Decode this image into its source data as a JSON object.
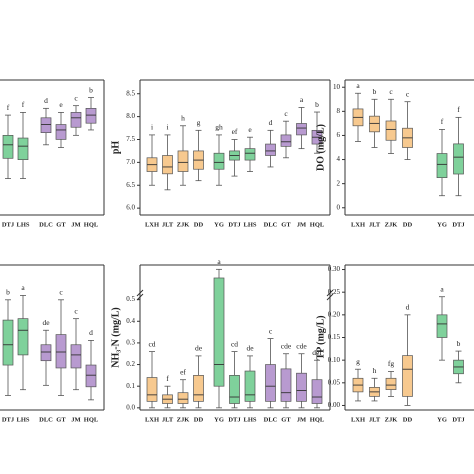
{
  "chart_data": [
    {
      "type": "box",
      "categories": [
        "DTJ",
        "LHS",
        "DLC",
        "GT",
        "JM",
        "HQL"
      ],
      "colors": [
        "#7fd19b",
        "#7fd19b",
        "#b89ad0",
        "#b89ad0",
        "#b89ad0",
        "#b89ad0"
      ],
      "ylim": [
        0,
        10
      ],
      "min": [
        2.7,
        2.7,
        5.2,
        5.0,
        5.9,
        6.3
      ],
      "q1": [
        4.2,
        4.1,
        6.1,
        5.6,
        6.5,
        6.8
      ],
      "median": [
        5.2,
        5.1,
        6.7,
        6.3,
        7.2,
        7.4
      ],
      "q3": [
        5.9,
        5.7,
        7.2,
        6.7,
        7.6,
        7.9
      ],
      "max": [
        7.4,
        7.6,
        7.9,
        7.6,
        8.1,
        8.7
      ],
      "letters": [
        "f",
        "f",
        "d",
        "e",
        "c",
        "b"
      ]
    },
    {
      "type": "box",
      "ylabel": "pH",
      "categories": [
        "LXH",
        "JLT",
        "ZJK",
        "DD",
        "YG",
        "DTJ",
        "LHS",
        "DLC",
        "GT",
        "JM",
        "HQL"
      ],
      "colors": [
        "#f7c98f",
        "#f7c98f",
        "#f7c98f",
        "#f7c98f",
        "#7fd19b",
        "#7fd19b",
        "#7fd19b",
        "#b89ad0",
        "#b89ad0",
        "#b89ad0",
        "#b89ad0"
      ],
      "ylim": [
        5.85,
        8.8
      ],
      "yticks": [
        {
          "value": 6,
          "label": "6.0"
        },
        6.5,
        {
          "value": 7,
          "label": "7.0"
        },
        7.5,
        {
          "value": 8,
          "label": "8.0"
        },
        8.5
      ],
      "min": [
        6.5,
        6.4,
        6.5,
        6.6,
        6.5,
        6.7,
        6.8,
        6.9,
        7.1,
        7.3,
        7.2
      ],
      "q1": [
        6.8,
        6.75,
        6.8,
        6.85,
        6.85,
        7.05,
        7.05,
        7.15,
        7.35,
        7.6,
        7.4
      ],
      "median": [
        6.95,
        6.9,
        7.0,
        7.05,
        7.0,
        7.15,
        7.2,
        7.25,
        7.45,
        7.75,
        7.55
      ],
      "q3": [
        7.1,
        7.15,
        7.25,
        7.25,
        7.2,
        7.25,
        7.3,
        7.4,
        7.6,
        7.85,
        7.7
      ],
      "max": [
        7.6,
        7.6,
        7.8,
        7.7,
        7.6,
        7.5,
        7.55,
        7.7,
        7.9,
        8.2,
        8.1
      ],
      "letters": [
        "i",
        "i",
        "h",
        "g",
        "gh",
        "ef",
        "e",
        "d",
        "c",
        "a",
        "b"
      ]
    },
    {
      "type": "box",
      "ylabel": "DO (mg/L)",
      "categories": [
        "LXH",
        "JLT",
        "ZJK",
        "DD",
        "YG",
        "DTJ"
      ],
      "colors": [
        "#f7c98f",
        "#f7c98f",
        "#f7c98f",
        "#f7c98f",
        "#7fd19b",
        "#7fd19b"
      ],
      "ylim": [
        -0.6,
        10.6
      ],
      "yticks": [
        0,
        2,
        4,
        6,
        8,
        10
      ],
      "min": [
        5.5,
        5,
        4.5,
        4,
        1,
        1
      ],
      "q1": [
        6.8,
        6.3,
        5.6,
        5,
        2.5,
        2.8
      ],
      "median": [
        7.5,
        7,
        6.5,
        5.8,
        3.6,
        4.2
      ],
      "q3": [
        8.2,
        7.6,
        7.2,
        6.6,
        4.5,
        5.3
      ],
      "max": [
        9.5,
        9,
        9,
        8.8,
        6.5,
        7.5
      ],
      "letters": [
        "a",
        "b",
        "c",
        "c",
        "f",
        "f"
      ]
    },
    {
      "type": "box",
      "categories": [
        "DTJ",
        "LHS",
        "DLC",
        "GT",
        "JM",
        "HQL"
      ],
      "colors": [
        "#7fd19b",
        "#7fd19b",
        "#b89ad0",
        "#b89ad0",
        "#b89ad0",
        "#b89ad0"
      ],
      "ylim": [
        0,
        10
      ],
      "min": [
        1.0,
        1.4,
        1.7,
        1.0,
        1.4,
        0.7
      ],
      "q1": [
        3.1,
        3.8,
        3.4,
        2.9,
        2.9,
        1.6
      ],
      "median": [
        4.5,
        5.5,
        4.0,
        4.0,
        3.8,
        2.4
      ],
      "q3": [
        6.2,
        6.3,
        4.5,
        5.2,
        4.5,
        3.1
      ],
      "max": [
        7.6,
        7.9,
        5.5,
        7.6,
        6.3,
        4.8
      ],
      "letters": [
        "b",
        "a",
        "de",
        "c",
        "c",
        "d"
      ]
    },
    {
      "type": "box",
      "ylabel": "NH₃-N (mg/L)",
      "categories": [
        "LXH",
        "JLT",
        "ZJK",
        "DD",
        "YG",
        "DTJ",
        "LHS",
        "DLC",
        "GT",
        "JM",
        "HQL"
      ],
      "colors": [
        "#f7c98f",
        "#f7c98f",
        "#f7c98f",
        "#f7c98f",
        "#7fd19b",
        "#7fd19b",
        "#7fd19b",
        "#b89ad0",
        "#b89ad0",
        "#b89ad0",
        "#b89ad0"
      ],
      "ylim": [
        -0.01,
        0.66
      ],
      "yticks": [
        {
          "value": 0,
          "label": "0.0"
        },
        0.1,
        0.2,
        0.3,
        0.4,
        0.5
      ],
      "min": [
        0,
        0,
        0,
        0,
        0,
        0,
        0,
        0,
        0,
        0,
        0
      ],
      "q1": [
        0.03,
        0.02,
        0.02,
        0.03,
        0.1,
        0.02,
        0.03,
        0.03,
        0.03,
        0.03,
        0.02
      ],
      "median": [
        0.06,
        0.04,
        0.04,
        0.06,
        0.2,
        0.05,
        0.06,
        0.1,
        0.07,
        0.08,
        0.05
      ],
      "q3": [
        0.14,
        0.06,
        0.07,
        0.15,
        0.6,
        0.15,
        0.17,
        0.2,
        0.18,
        0.16,
        0.13
      ],
      "max": [
        0.26,
        0.1,
        0.13,
        0.24,
        0.64,
        0.26,
        0.24,
        0.32,
        0.25,
        0.25,
        0.22
      ],
      "letters": [
        "cd",
        "f",
        "ef",
        "de",
        "a",
        "cd",
        "de",
        "c",
        "cde",
        "cde",
        "def"
      ]
    },
    {
      "type": "box",
      "ylabel": "TP (mg/L)",
      "categories": [
        "LXH",
        "JLT",
        "ZJK",
        "DD",
        "YG",
        "DTJ"
      ],
      "colors": [
        "#f7c98f",
        "#f7c98f",
        "#f7c98f",
        "#f7c98f",
        "#7fd19b",
        "#7fd19b"
      ],
      "ylim": [
        -0.01,
        0.31
      ],
      "yticks": [
        {
          "value": 0,
          "label": "0.00"
        },
        0.05,
        {
          "value": 0.1,
          "label": "0.10"
        },
        0.15,
        {
          "value": 0.2,
          "label": "0.20"
        },
        0.25,
        {
          "value": 0.3,
          "label": "0.30"
        }
      ],
      "min": [
        0.01,
        0.01,
        0.02,
        0,
        0.1,
        0.05
      ],
      "q1": [
        0.03,
        0.02,
        0.035,
        0.02,
        0.15,
        0.07
      ],
      "median": [
        0.045,
        0.03,
        0.045,
        0.08,
        0.18,
        0.085
      ],
      "q3": [
        0.06,
        0.04,
        0.06,
        0.11,
        0.2,
        0.1
      ],
      "max": [
        0.08,
        0.06,
        0.075,
        0.2,
        0.24,
        0.12
      ],
      "letters": [
        "g",
        "h",
        "fg",
        "d",
        "a",
        "b"
      ]
    }
  ]
}
